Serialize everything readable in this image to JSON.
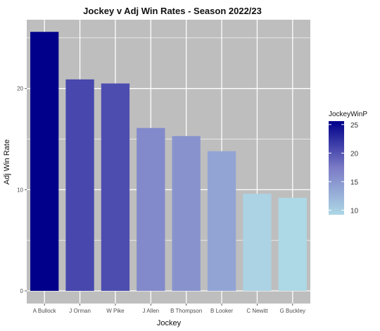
{
  "chart_data": {
    "type": "bar",
    "title": "Jockey v Adj Win Rates - Season 2022/23",
    "xlabel": "Jockey",
    "ylabel": "Adj Win Rate",
    "categories": [
      "A Bullock",
      "J Orman",
      "W Pike",
      "J Allen",
      "B Thompson",
      "B Looker",
      "C Newitt",
      "G Buckley"
    ],
    "values": [
      25.6,
      20.9,
      20.5,
      16.1,
      15.3,
      13.8,
      9.6,
      9.2
    ],
    "ylim": [
      0,
      26.8
    ],
    "yticks": [
      0,
      10,
      20
    ],
    "ytick_labels": [
      "0",
      "10",
      "20"
    ],
    "grid": true,
    "legend": {
      "title": "JockeyWinP",
      "position": "right",
      "range": [
        9.2,
        25.6
      ],
      "ticks": [
        10,
        15,
        20,
        25
      ],
      "tick_labels": [
        "10",
        "15",
        "20",
        "25"
      ],
      "color_low": "#add8e6",
      "color_mid": "#7b7bc6",
      "color_high": "#00008b"
    },
    "colors": {
      "panel_background": "#bebebe",
      "grid": "#ffffff"
    }
  }
}
